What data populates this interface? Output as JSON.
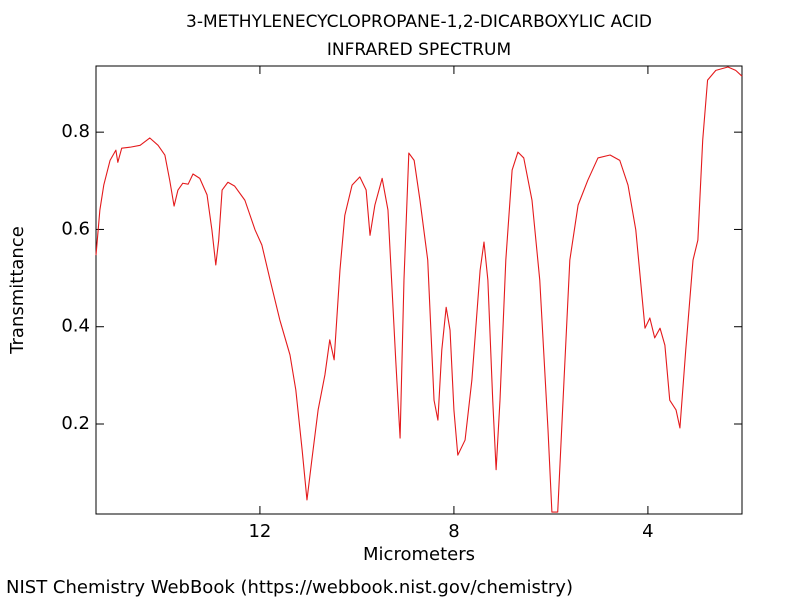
{
  "chart_data": {
    "type": "line",
    "title": "3-METHYLENECYCLOPROPANE-1,2-DICARBOXYLIC ACID",
    "subtitle": "INFRARED SPECTRUM",
    "x_label": "Micrometers",
    "y_label": "Transmittance",
    "source": "NIST Chemistry WebBook (https://webbook.nist.gov/chemistry)",
    "xlim": [
      15.38,
      2.06
    ],
    "ylim": [
      0.015,
      0.936
    ],
    "xticks": [
      12,
      8,
      4
    ],
    "yticks": [
      0.2,
      0.4,
      0.6,
      0.8
    ],
    "grid": false,
    "series": [
      {
        "name": "3-METHYLENECYCLOPROPANE-1,2-DICARBOXYLIC ACID",
        "color": "#e41a1c",
        "x": [
          15.38,
          15.3,
          15.22,
          15.09,
          14.97,
          14.93,
          14.85,
          14.68,
          14.47,
          14.27,
          14.1,
          13.96,
          13.86,
          13.77,
          13.69,
          13.59,
          13.48,
          13.38,
          13.24,
          13.09,
          12.99,
          12.91,
          12.85,
          12.78,
          12.66,
          12.52,
          12.31,
          12.1,
          11.96,
          11.79,
          11.59,
          11.38,
          11.26,
          11.13,
          11.03,
          10.93,
          10.8,
          10.66,
          10.56,
          10.47,
          10.35,
          10.25,
          10.1,
          9.94,
          9.81,
          9.73,
          9.63,
          9.48,
          9.36,
          9.2,
          9.11,
          9.03,
          8.93,
          8.82,
          8.7,
          8.54,
          8.41,
          8.33,
          8.25,
          8.16,
          8.08,
          8.0,
          7.92,
          7.77,
          7.63,
          7.46,
          7.38,
          7.3,
          7.2,
          7.13,
          7.05,
          6.93,
          6.8,
          6.68,
          6.56,
          6.39,
          6.23,
          6.06,
          5.98,
          5.86,
          5.73,
          5.61,
          5.44,
          5.24,
          5.03,
          4.78,
          4.58,
          4.41,
          4.25,
          4.06,
          3.96,
          3.86,
          3.75,
          3.65,
          3.55,
          3.42,
          3.34,
          3.22,
          3.07,
          2.97,
          2.87,
          2.77,
          2.6,
          2.35,
          2.19,
          2.06
        ],
        "values": [
          0.547,
          0.64,
          0.691,
          0.742,
          0.763,
          0.738,
          0.767,
          0.769,
          0.773,
          0.788,
          0.773,
          0.753,
          0.701,
          0.648,
          0.681,
          0.695,
          0.693,
          0.714,
          0.705,
          0.671,
          0.599,
          0.527,
          0.578,
          0.681,
          0.697,
          0.689,
          0.66,
          0.599,
          0.568,
          0.496,
          0.414,
          0.342,
          0.27,
          0.147,
          0.044,
          0.126,
          0.229,
          0.301,
          0.373,
          0.332,
          0.516,
          0.629,
          0.691,
          0.708,
          0.681,
          0.588,
          0.65,
          0.705,
          0.64,
          0.332,
          0.171,
          0.496,
          0.757,
          0.742,
          0.66,
          0.537,
          0.249,
          0.208,
          0.352,
          0.44,
          0.393,
          0.229,
          0.136,
          0.167,
          0.29,
          0.516,
          0.574,
          0.496,
          0.249,
          0.106,
          0.249,
          0.537,
          0.722,
          0.759,
          0.747,
          0.66,
          0.496,
          0.188,
          0.019,
          0.019,
          0.29,
          0.537,
          0.65,
          0.701,
          0.747,
          0.753,
          0.742,
          0.691,
          0.599,
          0.397,
          0.418,
          0.377,
          0.397,
          0.362,
          0.249,
          0.229,
          0.192,
          0.352,
          0.537,
          0.578,
          0.784,
          0.907,
          0.927,
          0.934,
          0.927,
          0.915
        ]
      }
    ]
  }
}
